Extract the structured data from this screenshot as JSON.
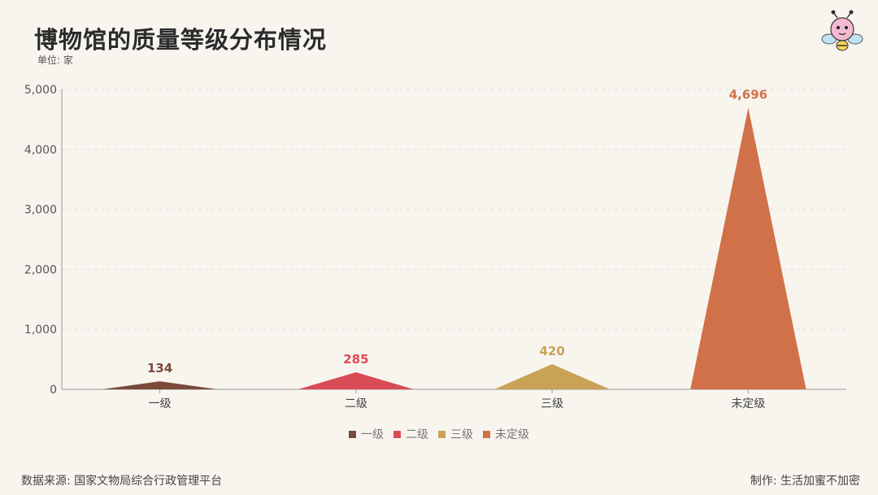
{
  "header": {
    "title": "博物馆的质量等级分布情况",
    "unit": "单位: 家"
  },
  "footer": {
    "source": "数据来源: 国家文物局综合行政管理平台",
    "credit": "制作:  生活加蜜不加密"
  },
  "logo": {
    "icon": "cartoon-bee-icon"
  },
  "chart_data": {
    "type": "area",
    "categories": [
      "一级",
      "二级",
      "三级",
      "未定级"
    ],
    "values": [
      134,
      285,
      420,
      4696
    ],
    "value_labels": [
      "134",
      "285",
      "420",
      "4,696"
    ],
    "colors": [
      "#7b4a3a",
      "#d94b55",
      "#c9a258",
      "#d17149"
    ],
    "ylim": [
      0,
      5000
    ],
    "yticks": [
      0,
      1000,
      2000,
      3000,
      4000,
      5000
    ],
    "ytick_labels": [
      "0",
      "1,000",
      "2,000",
      "3,000",
      "4,000",
      "5,000"
    ],
    "grid": true,
    "legend_position": "bottom-center"
  }
}
